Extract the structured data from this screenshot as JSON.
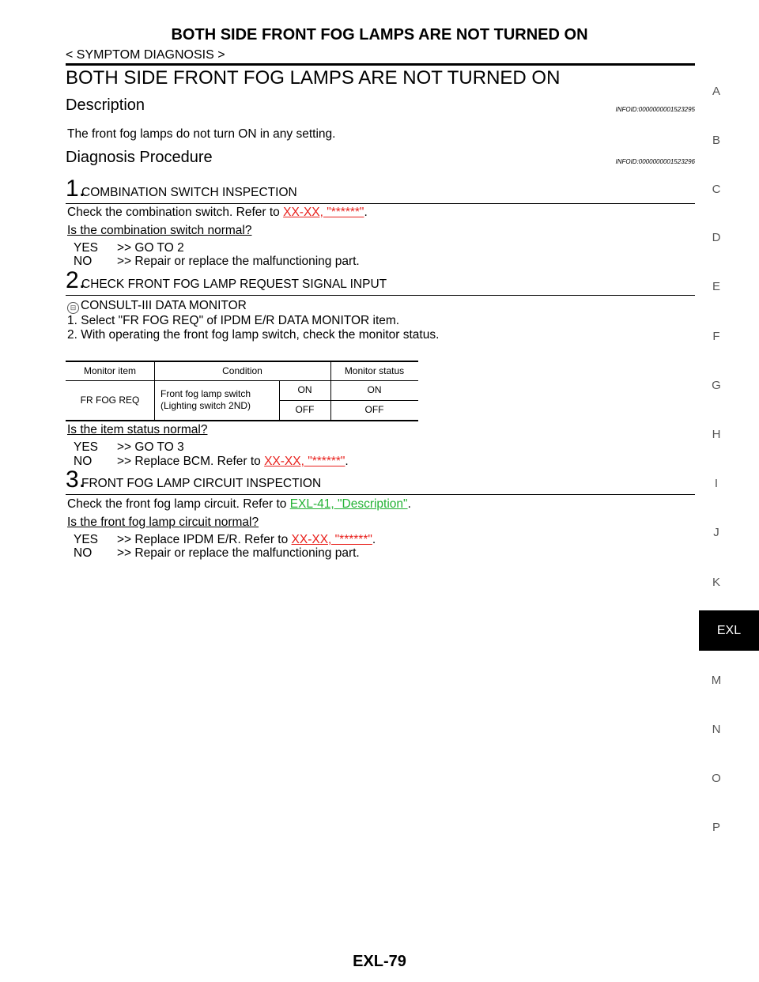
{
  "header": {
    "title": "BOTH SIDE FRONT FOG LAMPS ARE NOT TURNED ON",
    "breadcrumb": "< SYMPTOM DIAGNOSIS >"
  },
  "main_title": "BOTH SIDE FRONT FOG LAMPS ARE NOT TURNED ON",
  "description": {
    "title": "Description",
    "infoid": "INFOID:0000000001523295",
    "text": "The front fog lamps do not turn ON in any setting."
  },
  "procedure": {
    "title": "Diagnosis Procedure",
    "infoid": "INFOID:0000000001523296"
  },
  "step1": {
    "num": "1.",
    "title": "COMBINATION SWITCH INSPECTION",
    "text_prefix": "Check the combination switch. Refer to ",
    "link": "XX-XX, \"******\"",
    "text_suffix": ".",
    "question": "Is the combination switch normal?",
    "yes_key": "YES",
    "yes_text": ">> GO TO 2",
    "no_key": "NO",
    "no_text": ">> Repair or replace the malfunctioning part."
  },
  "step2": {
    "num": "2.",
    "title": "CHECK FRONT FOG LAMP REQUEST SIGNAL INPUT",
    "consult_icon": "consult-icon",
    "consult_label": "CONSULT-III DATA MONITOR",
    "item1": "1.   Select \"FR FOG REQ\" of IPDM E/R DATA MONITOR item.",
    "item2": "2.   With operating the front fog lamp switch, check the monitor status.",
    "table": {
      "headers": [
        "Monitor item",
        "Condition",
        "Monitor status"
      ],
      "item": "FR FOG REQ",
      "condition_line1": "Front fog lamp switch",
      "condition_line2": "(Lighting switch 2ND)",
      "rows": [
        {
          "state": "ON",
          "status": "ON"
        },
        {
          "state": "OFF",
          "status": "OFF"
        }
      ]
    },
    "question": "Is the item status normal?",
    "yes_key": "YES",
    "yes_text": ">> GO TO 3",
    "no_key": "NO",
    "no_text_prefix": ">> Replace BCM. Refer to ",
    "no_link": "XX-XX, \"******\"",
    "no_text_suffix": "."
  },
  "step3": {
    "num": "3.",
    "title": "FRONT FOG LAMP CIRCUIT INSPECTION",
    "text_prefix": "Check the front fog lamp circuit. Refer to ",
    "link": "EXL-41, \"Description\"",
    "text_suffix": ".",
    "question": "Is the front fog lamp circuit normal?",
    "yes_key": "YES",
    "yes_text_prefix": ">> Replace IPDM E/R. Refer to ",
    "yes_link": "XX-XX, \"******\"",
    "yes_text_suffix": ".",
    "no_key": "NO",
    "no_text": ">> Repair or replace the malfunctioning part."
  },
  "sidebar": {
    "letters": [
      "A",
      "B",
      "C",
      "D",
      "E",
      "F",
      "G",
      "H",
      "I",
      "J",
      "K",
      "M",
      "N",
      "O",
      "P"
    ],
    "active_tab": "EXL"
  },
  "footer": {
    "page": "EXL-79"
  },
  "colors": {
    "link_red": "#e8201c",
    "link_green": "#22b233"
  }
}
